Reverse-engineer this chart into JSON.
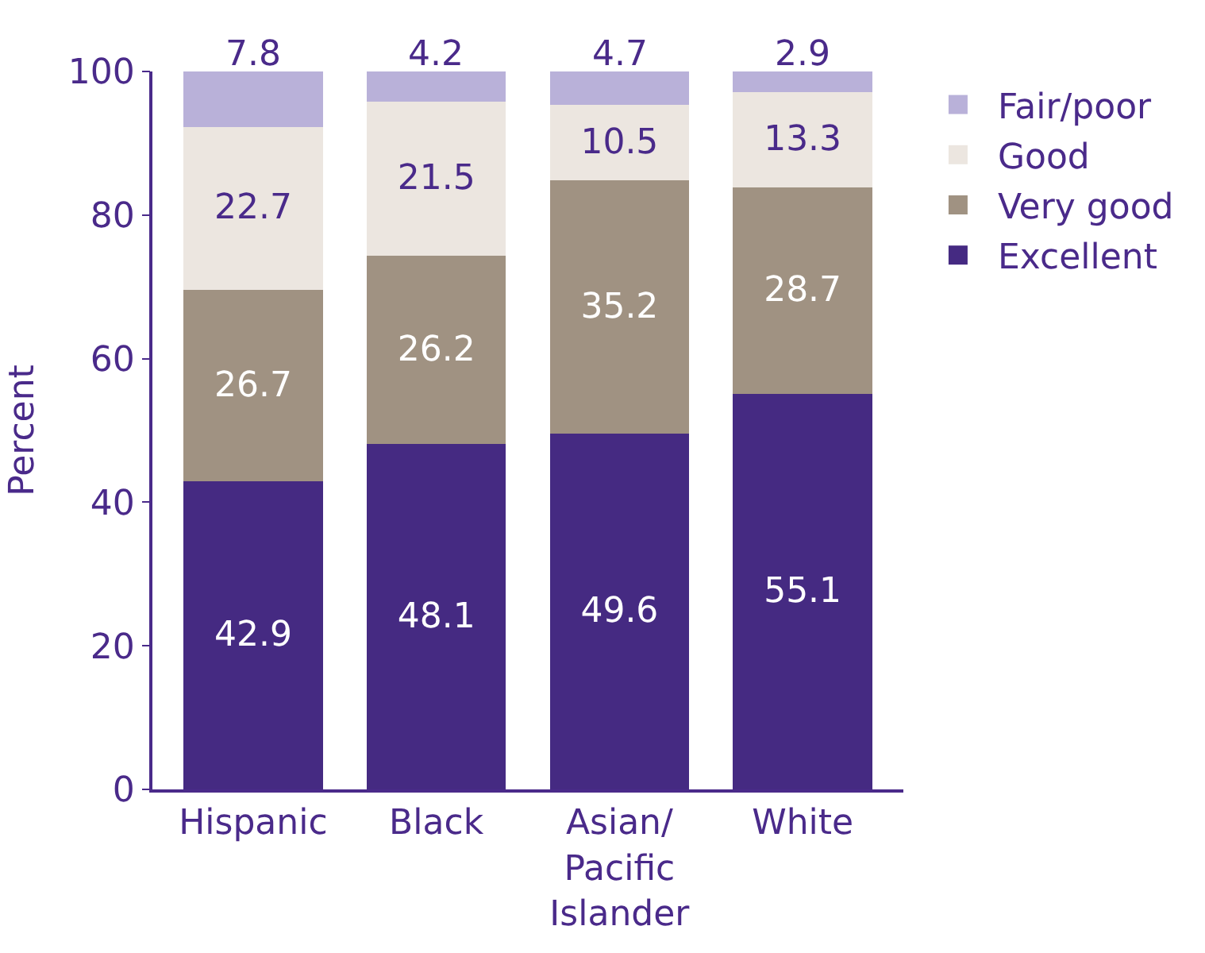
{
  "chart_data": {
    "type": "bar",
    "stacked": true,
    "ylabel": "Percent",
    "categories": [
      "Hispanic",
      "Black",
      "Asian/ Pacific Islander",
      "White"
    ],
    "series": [
      {
        "name": "Excellent",
        "color": "#452a82",
        "values": [
          42.9,
          48.1,
          49.6,
          55.1
        ]
      },
      {
        "name": "Very good",
        "color": "#a09282",
        "values": [
          26.7,
          26.2,
          35.2,
          28.7
        ]
      },
      {
        "name": "Good",
        "color": "#ece6e0",
        "values": [
          22.7,
          21.5,
          10.5,
          13.3
        ]
      },
      {
        "name": "Fair/poor",
        "color": "#b9b1d9",
        "values": [
          7.8,
          4.2,
          4.7,
          2.9
        ]
      }
    ],
    "ylim": [
      0,
      100
    ],
    "yticks": [
      0,
      20,
      40,
      60,
      80,
      100
    ],
    "legend": "top right",
    "data_labels": true
  }
}
